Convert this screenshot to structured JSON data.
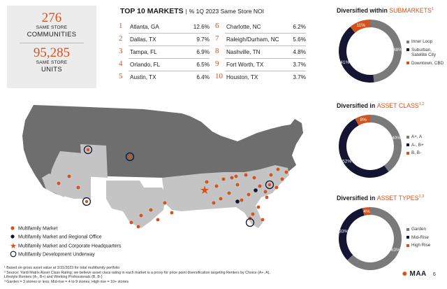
{
  "stats": {
    "communities_value": "276",
    "communities_sub": "SAME STORE",
    "communities_label": "COMMUNITIES",
    "units_value": "95,285",
    "units_sub": "SAME STORE",
    "units_label": "UNITS"
  },
  "top_markets": {
    "title": "TOP 10 MARKETS",
    "separator": "|",
    "subtitle": "% 1Q 2023 Same Store NOI",
    "rows": [
      {
        "rank": "1",
        "name": "Atlanta, GA",
        "value": "12.6%"
      },
      {
        "rank": "2",
        "name": "Dallas, TX",
        "value": "9.7%"
      },
      {
        "rank": "3",
        "name": "Tampa, FL",
        "value": "6.9%"
      },
      {
        "rank": "4",
        "name": "Orlando, FL",
        "value": "6.5%"
      },
      {
        "rank": "5",
        "name": "Austin, TX",
        "value": "6.4%"
      },
      {
        "rank": "6",
        "name": "Charlotte, NC",
        "value": "6.2%"
      },
      {
        "rank": "7",
        "name": "Raleigh/Durham, NC",
        "value": "5.6%"
      },
      {
        "rank": "8",
        "name": "Nashville, TN",
        "value": "4.8%"
      },
      {
        "rank": "9",
        "name": "Fort Worth, TX",
        "value": "3.7%"
      },
      {
        "rank": "10",
        "name": "Houston, TX",
        "value": "3.7%"
      }
    ]
  },
  "chart_data": [
    {
      "type": "pie",
      "title_prefix": "Diversified within",
      "title_accent": "SUBMARKETS",
      "title_sup": "1",
      "labels": [
        "Inner Loop",
        "Suburban, Satellite City",
        "Downtown, CBD"
      ],
      "values": [
        48,
        41,
        11
      ],
      "value_labels": [
        "48%",
        "41%",
        "11%"
      ],
      "colors": [
        "#7a7a7a",
        "#141433",
        "#d4521b"
      ],
      "legend": "right"
    },
    {
      "type": "pie",
      "title_prefix": "Diversified in",
      "title_accent": "ASSET CLASS",
      "title_sup": "1,2",
      "labels": [
        "A+, A",
        "A-, B+",
        "B, B-"
      ],
      "values": [
        40,
        52,
        8
      ],
      "value_labels": [
        "40%",
        "52%",
        "8%"
      ],
      "colors": [
        "#7a7a7a",
        "#141433",
        "#d4521b"
      ],
      "legend": "right"
    },
    {
      "type": "pie",
      "title_prefix": "Diversified in",
      "title_accent": "ASSET TYPES",
      "title_sup": "1,3",
      "labels": [
        "Garden",
        "Mid-Rise",
        "High Rise"
      ],
      "values": [
        63,
        33,
        4
      ],
      "value_labels": [
        "63%",
        "33%",
        "4%"
      ],
      "colors": [
        "#7a7a7a",
        "#141433",
        "#d4521b"
      ],
      "legend": "right"
    }
  ],
  "map_legend": [
    {
      "label": "Multifamily Market",
      "marker": "orange-dot"
    },
    {
      "label": "Multifamily Market and Regional Office",
      "marker": "navy-dot"
    },
    {
      "label": "Multifamily Market and Corporate Headquarters",
      "marker": "orange-star"
    },
    {
      "label": "Multifamily Development Underway",
      "marker": "navy-ring"
    }
  ],
  "footnotes": [
    "¹ Based on gross asset value at 3/31/2023 for total multifamily portfolio",
    "² Source: Yardi Matrix Asset Class Rating; we believe asset class rating in each market is a proxy for price point diversification targeting Renters by Choice (A+, A),",
    "Lifestyle Renters (A-, B+) and Working Professionals (B, B-)",
    "³ Garden = 3 stories or less; Mid-rise = 4 to 9 stories; High rise = 10+ stories"
  ],
  "logo": "MAA",
  "page_number": "6",
  "colors": {
    "accent": "#d4521b",
    "navy": "#141433",
    "gray": "#7a7a7a",
    "map_dark": "#6e6e6e",
    "map_light": "#c4c4c4"
  }
}
